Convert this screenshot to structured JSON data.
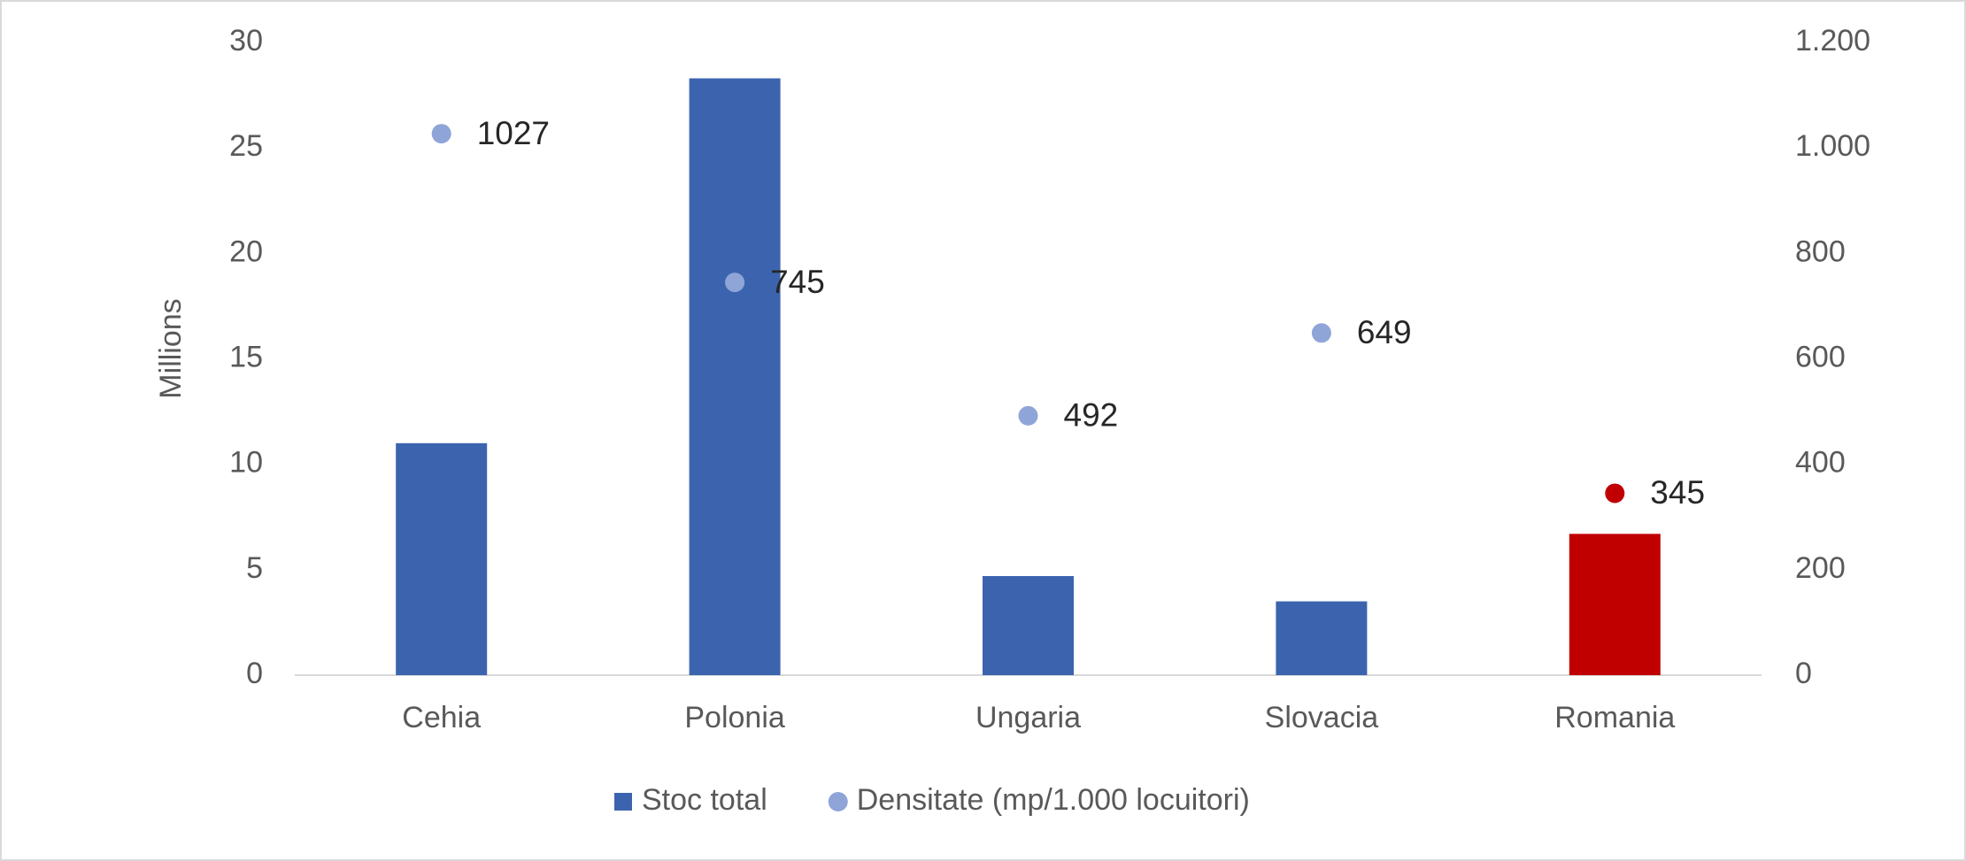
{
  "chart_data": {
    "type": "bar",
    "categories": [
      "Cehia",
      "Polonia",
      "Ungaria",
      "Slovacia",
      "Romania"
    ],
    "ylabel": "Millions",
    "ylim": [
      0,
      30
    ],
    "yticks": [
      0,
      5,
      10,
      15,
      20,
      25,
      30
    ],
    "y2lim": [
      0,
      1200
    ],
    "y2ticks": [
      0,
      200,
      400,
      600,
      800,
      {
        "value": 1000,
        "label": "1.000"
      },
      {
        "value": 1200,
        "label": "1.200"
      }
    ],
    "legend": "bottom",
    "series": [
      {
        "name": "Stoc total",
        "type": "bar",
        "color": "#3c64ae",
        "colors": [
          "#3c64ae",
          "#3c64ae",
          "#3c64ae",
          "#3c64ae",
          "#c00000"
        ],
        "values": [
          11.0,
          28.3,
          4.7,
          3.5,
          6.7
        ]
      },
      {
        "name": "Densitate (mp/1.000 locuitori)",
        "type": "scatter",
        "axis": "y2",
        "color": "#8fa5d8",
        "colors": [
          "#8fa5d8",
          "#8fa5d8",
          "#8fa5d8",
          "#8fa5d8",
          "#c00000"
        ],
        "values": [
          1027,
          745,
          492,
          649,
          345
        ]
      }
    ]
  }
}
